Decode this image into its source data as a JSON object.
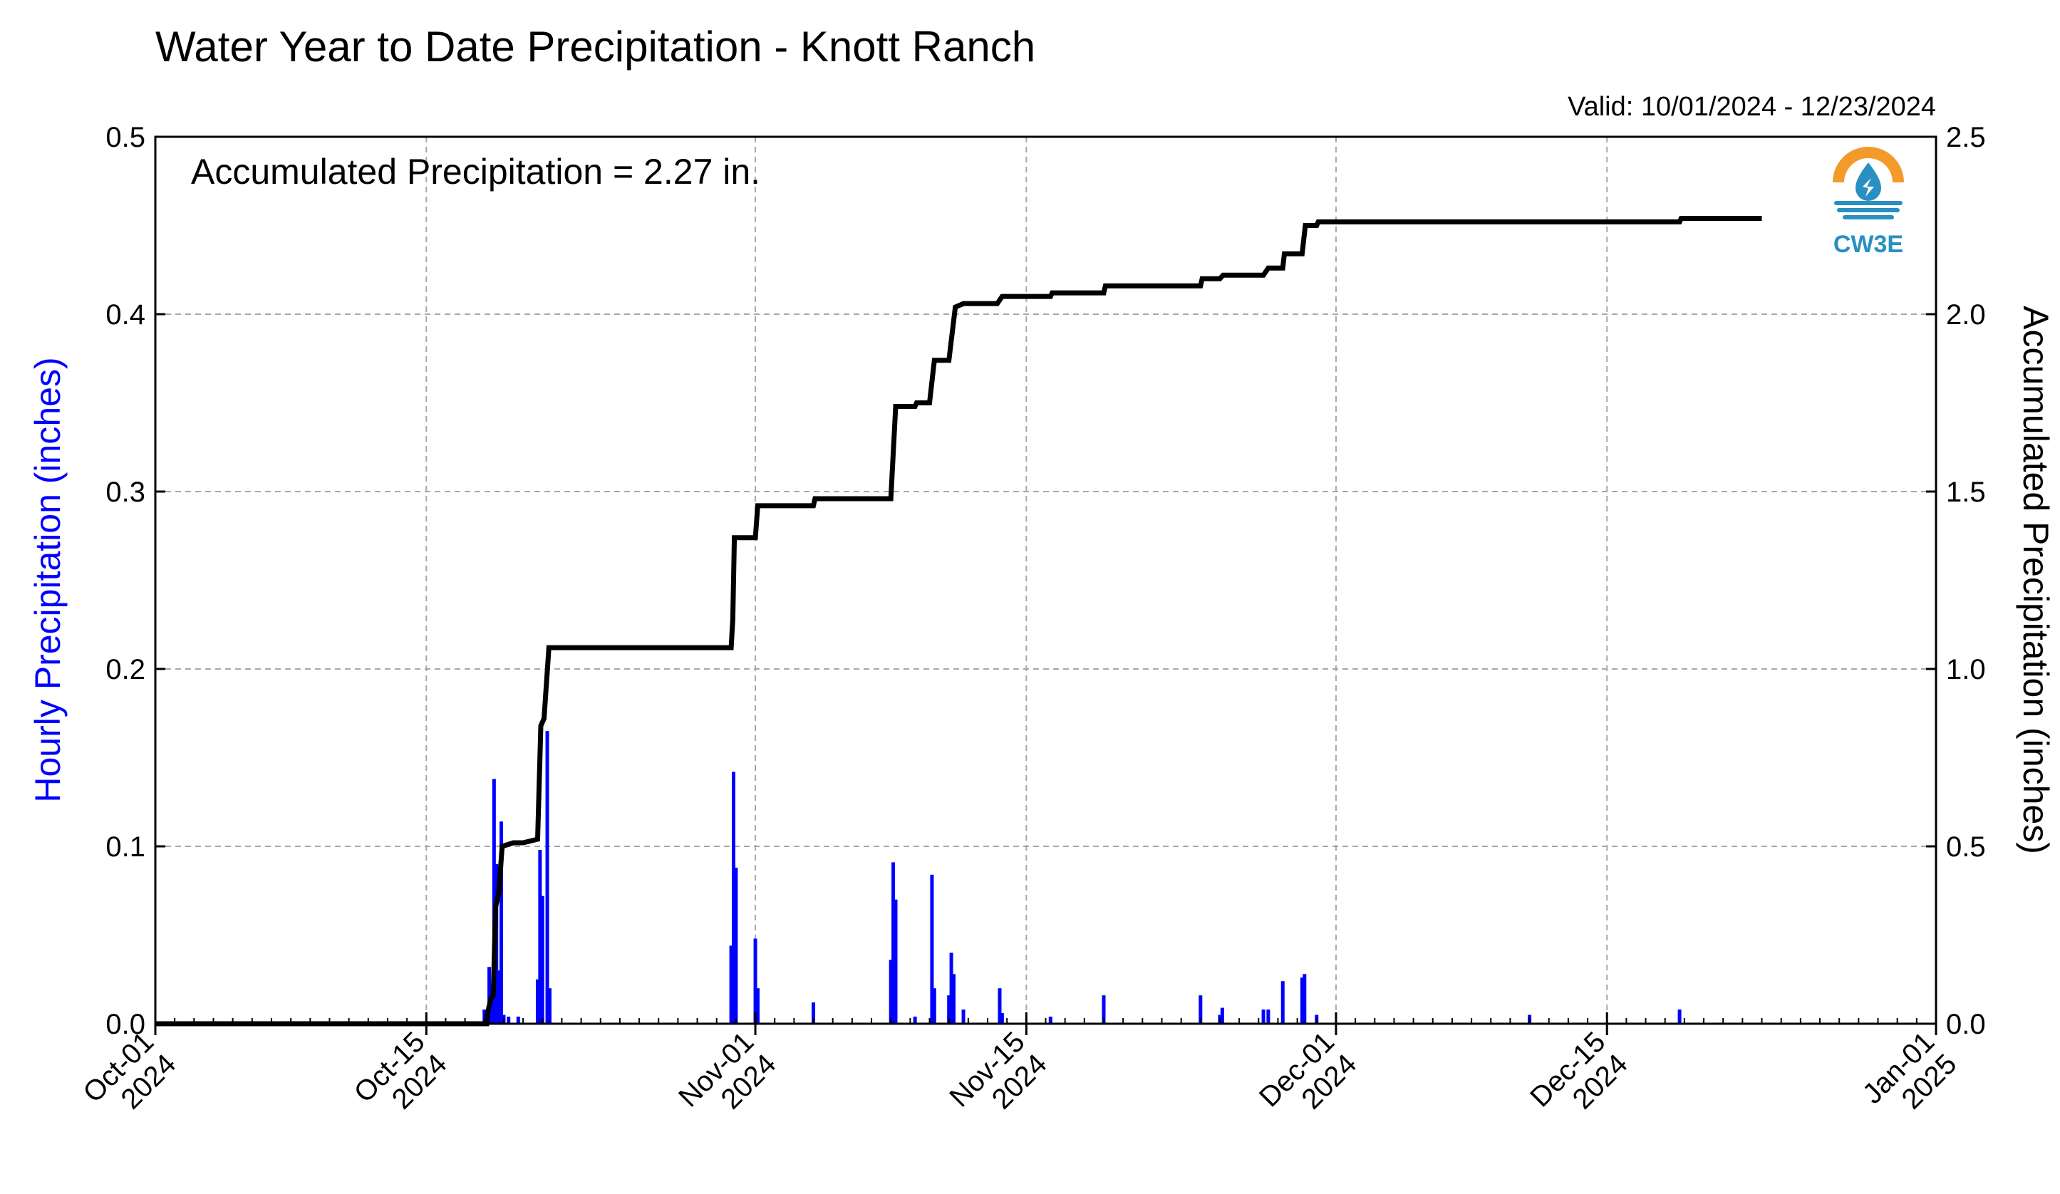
{
  "chart_data": {
    "type": "bar",
    "title": "Water Year to Date Precipitation - Knott Ranch",
    "valid_label": "Valid: 10/01/2024 - 12/23/2024",
    "annotation": "Accumulated Precipitation = 2.27 in.",
    "logo_text": "CW3E",
    "ylabel": "Hourly Precipitation (inches)",
    "y2label": "Accumulated Precipitation (inches)",
    "ylim": [
      0,
      0.5
    ],
    "y2lim": [
      0,
      2.5
    ],
    "yticks": [
      "0.0",
      "0.1",
      "0.2",
      "0.3",
      "0.4",
      "0.5"
    ],
    "y2ticks": [
      "0.0",
      "0.5",
      "1.0",
      "1.5",
      "2.0",
      "2.5"
    ],
    "xlim": [
      "2024-10-01",
      "2025-01-01"
    ],
    "xticks": [
      {
        "date": "2024-10-01",
        "line1": "Oct-01",
        "line2": "2024"
      },
      {
        "date": "2024-10-15",
        "line1": "Oct-15",
        "line2": "2024"
      },
      {
        "date": "2024-11-01",
        "line1": "Nov-01",
        "line2": "2024"
      },
      {
        "date": "2024-11-15",
        "line1": "Nov-15",
        "line2": "2024"
      },
      {
        "date": "2024-12-01",
        "line1": "Dec-01",
        "line2": "2024"
      },
      {
        "date": "2024-12-15",
        "line1": "Dec-15",
        "line2": "2024"
      },
      {
        "date": "2025-01-01",
        "line1": "Jan-01",
        "line2": "2025"
      }
    ],
    "grid": true,
    "data_end": "2024-12-23",
    "colors": {
      "hourly": "#0000ff",
      "accumulated": "#000000",
      "ylabel": "#0000ff",
      "grid": "#a8a8a8",
      "logo_orange": "#f39a2b",
      "logo_blue": "#2a8fc1"
    },
    "series": [
      {
        "name": "Hourly Precipitation (inches)",
        "axis": "left",
        "points": [
          [
            "2024-10-18 00:00",
            0.008
          ],
          [
            "2024-10-18 06:00",
            0.032
          ],
          [
            "2024-10-18 09:00",
            0.012
          ],
          [
            "2024-10-18 12:00",
            0.138
          ],
          [
            "2024-10-18 15:00",
            0.09
          ],
          [
            "2024-10-18 18:00",
            0.03
          ],
          [
            "2024-10-18 21:00",
            0.114
          ],
          [
            "2024-10-19 00:00",
            0.005
          ],
          [
            "2024-10-19 06:00",
            0.004
          ],
          [
            "2024-10-19 18:00",
            0.004
          ],
          [
            "2024-10-20 18:00",
            0.025
          ],
          [
            "2024-10-20 21:00",
            0.098
          ],
          [
            "2024-10-21 00:00",
            0.072
          ],
          [
            "2024-10-21 06:00",
            0.165
          ],
          [
            "2024-10-21 09:00",
            0.02
          ],
          [
            "2024-10-30 18:00",
            0.044
          ],
          [
            "2024-10-30 21:00",
            0.142
          ],
          [
            "2024-10-31 00:00",
            0.088
          ],
          [
            "2024-11-01 00:00",
            0.048
          ],
          [
            "2024-11-01 03:00",
            0.02
          ],
          [
            "2024-11-04 00:00",
            0.012
          ],
          [
            "2024-11-08 00:00",
            0.036
          ],
          [
            "2024-11-08 03:00",
            0.091
          ],
          [
            "2024-11-08 06:00",
            0.07
          ],
          [
            "2024-11-09 06:00",
            0.004
          ],
          [
            "2024-11-10 03:00",
            0.084
          ],
          [
            "2024-11-10 06:00",
            0.02
          ],
          [
            "2024-11-11 00:00",
            0.016
          ],
          [
            "2024-11-11 03:00",
            0.04
          ],
          [
            "2024-11-11 06:00",
            0.028
          ],
          [
            "2024-11-11 18:00",
            0.008
          ],
          [
            "2024-11-13 15:00",
            0.02
          ],
          [
            "2024-11-13 18:00",
            0.006
          ],
          [
            "2024-11-16 06:00",
            0.004
          ],
          [
            "2024-11-19 00:00",
            0.016
          ],
          [
            "2024-11-24 00:00",
            0.016
          ],
          [
            "2024-11-25 00:00",
            0.005
          ],
          [
            "2024-11-25 03:00",
            0.009
          ],
          [
            "2024-11-27 06:00",
            0.008
          ],
          [
            "2024-11-27 12:00",
            0.008
          ],
          [
            "2024-11-28 06:00",
            0.024
          ],
          [
            "2024-11-29 06:00",
            0.026
          ],
          [
            "2024-11-29 09:00",
            0.028
          ],
          [
            "2024-11-30 00:00",
            0.005
          ],
          [
            "2024-12-11 00:00",
            0.005
          ],
          [
            "2024-12-18 18:00",
            0.008
          ]
        ]
      },
      {
        "name": "Accumulated Precipitation (inches)",
        "axis": "right",
        "points": [
          [
            "2024-10-01 00:00",
            0.0
          ],
          [
            "2024-10-18 03:00",
            0.0
          ],
          [
            "2024-10-18 04:00",
            0.03
          ],
          [
            "2024-10-18 08:00",
            0.07
          ],
          [
            "2024-10-18 11:00",
            0.08
          ],
          [
            "2024-10-18 14:00",
            0.33
          ],
          [
            "2024-10-18 18:00",
            0.37
          ],
          [
            "2024-10-18 22:00",
            0.5
          ],
          [
            "2024-10-19 12:00",
            0.51
          ],
          [
            "2024-10-20 00:00",
            0.51
          ],
          [
            "2024-10-20 18:00",
            0.52
          ],
          [
            "2024-10-20 22:00",
            0.84
          ],
          [
            "2024-10-21 02:00",
            0.86
          ],
          [
            "2024-10-21 08:00",
            1.06
          ],
          [
            "2024-10-30 18:00",
            1.06
          ],
          [
            "2024-10-30 20:00",
            1.14
          ],
          [
            "2024-10-30 22:00",
            1.37
          ],
          [
            "2024-11-01 00:00",
            1.37
          ],
          [
            "2024-11-01 03:00",
            1.46
          ],
          [
            "2024-11-04 00:00",
            1.46
          ],
          [
            "2024-11-04 02:00",
            1.48
          ],
          [
            "2024-11-08 00:00",
            1.48
          ],
          [
            "2024-11-08 06:00",
            1.74
          ],
          [
            "2024-11-09 06:00",
            1.74
          ],
          [
            "2024-11-09 08:00",
            1.75
          ],
          [
            "2024-11-10 00:00",
            1.75
          ],
          [
            "2024-11-10 06:00",
            1.87
          ],
          [
            "2024-11-11 00:00",
            1.87
          ],
          [
            "2024-11-11 08:00",
            2.02
          ],
          [
            "2024-11-11 18:00",
            2.03
          ],
          [
            "2024-11-13 12:00",
            2.03
          ],
          [
            "2024-11-13 18:00",
            2.05
          ],
          [
            "2024-11-16 06:00",
            2.05
          ],
          [
            "2024-11-16 08:00",
            2.06
          ],
          [
            "2024-11-19 00:00",
            2.06
          ],
          [
            "2024-11-19 02:00",
            2.08
          ],
          [
            "2024-11-24 00:00",
            2.08
          ],
          [
            "2024-11-24 02:00",
            2.1
          ],
          [
            "2024-11-25 00:00",
            2.1
          ],
          [
            "2024-11-25 04:00",
            2.11
          ],
          [
            "2024-11-27 06:00",
            2.11
          ],
          [
            "2024-11-27 12:00",
            2.13
          ],
          [
            "2024-11-28 06:00",
            2.13
          ],
          [
            "2024-11-28 08:00",
            2.17
          ],
          [
            "2024-11-29 06:00",
            2.17
          ],
          [
            "2024-11-29 10:00",
            2.25
          ],
          [
            "2024-11-30 00:00",
            2.25
          ],
          [
            "2024-11-30 02:00",
            2.26
          ],
          [
            "2024-12-11 00:00",
            2.26
          ],
          [
            "2024-12-11 02:00",
            2.26
          ],
          [
            "2024-12-18 18:00",
            2.26
          ],
          [
            "2024-12-18 20:00",
            2.27
          ],
          [
            "2024-12-23 00:00",
            2.27
          ]
        ]
      }
    ]
  }
}
